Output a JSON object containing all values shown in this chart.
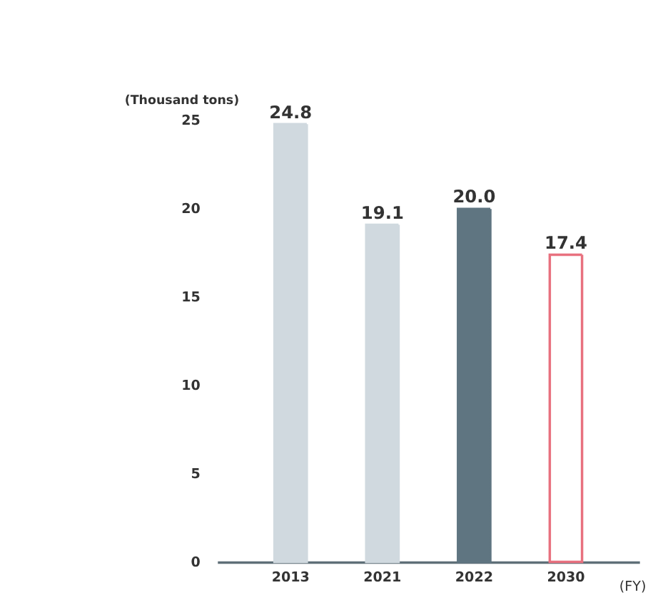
{
  "chart_data": {
    "type": "bar",
    "ylabel": "(Thousand tons)",
    "xlabel": "(FY)",
    "categories": [
      "2013",
      "2021",
      "2022",
      "2030"
    ],
    "series": [
      {
        "colors": [
          "#d0d9df",
          "#d0d9df",
          "#5f7581",
          null
        ],
        "values": [
          24.8,
          19.1,
          20.0,
          null
        ],
        "value_labels": [
          "24.8",
          "19.1",
          "20.0",
          null
        ]
      },
      {
        "color": "#e8717f",
        "line_style": "solid",
        "values": [
          null,
          null,
          null,
          17.4
        ],
        "value_labels": [
          null,
          null,
          null,
          "17.4"
        ]
      }
    ],
    "ylim": [
      0,
      25
    ],
    "yticks": [
      0,
      5,
      10,
      15,
      20,
      25
    ],
    "grid": false
  }
}
